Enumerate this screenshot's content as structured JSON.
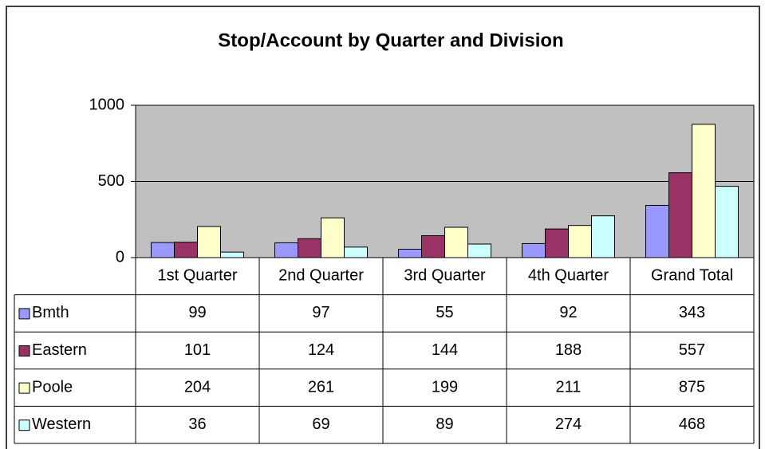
{
  "chart_data": {
    "type": "bar",
    "title": "Stop/Account by Quarter and Division",
    "categories": [
      "1st Quarter",
      "2nd Quarter",
      "3rd Quarter",
      "4th Quarter",
      "Grand Total"
    ],
    "series": [
      {
        "name": "Bmth",
        "color": "#9999ff",
        "values": [
          99,
          97,
          55,
          92,
          343
        ]
      },
      {
        "name": "Eastern",
        "color": "#993366",
        "values": [
          101,
          124,
          144,
          188,
          557
        ]
      },
      {
        "name": "Poole",
        "color": "#ffffcc",
        "values": [
          204,
          261,
          199,
          211,
          875
        ]
      },
      {
        "name": "Western",
        "color": "#ccffff",
        "values": [
          36,
          69,
          89,
          274,
          468
        ]
      }
    ],
    "ylim": [
      0,
      1000
    ],
    "yticks": [
      0,
      500,
      1000
    ],
    "grid": true,
    "data_table": true
  }
}
